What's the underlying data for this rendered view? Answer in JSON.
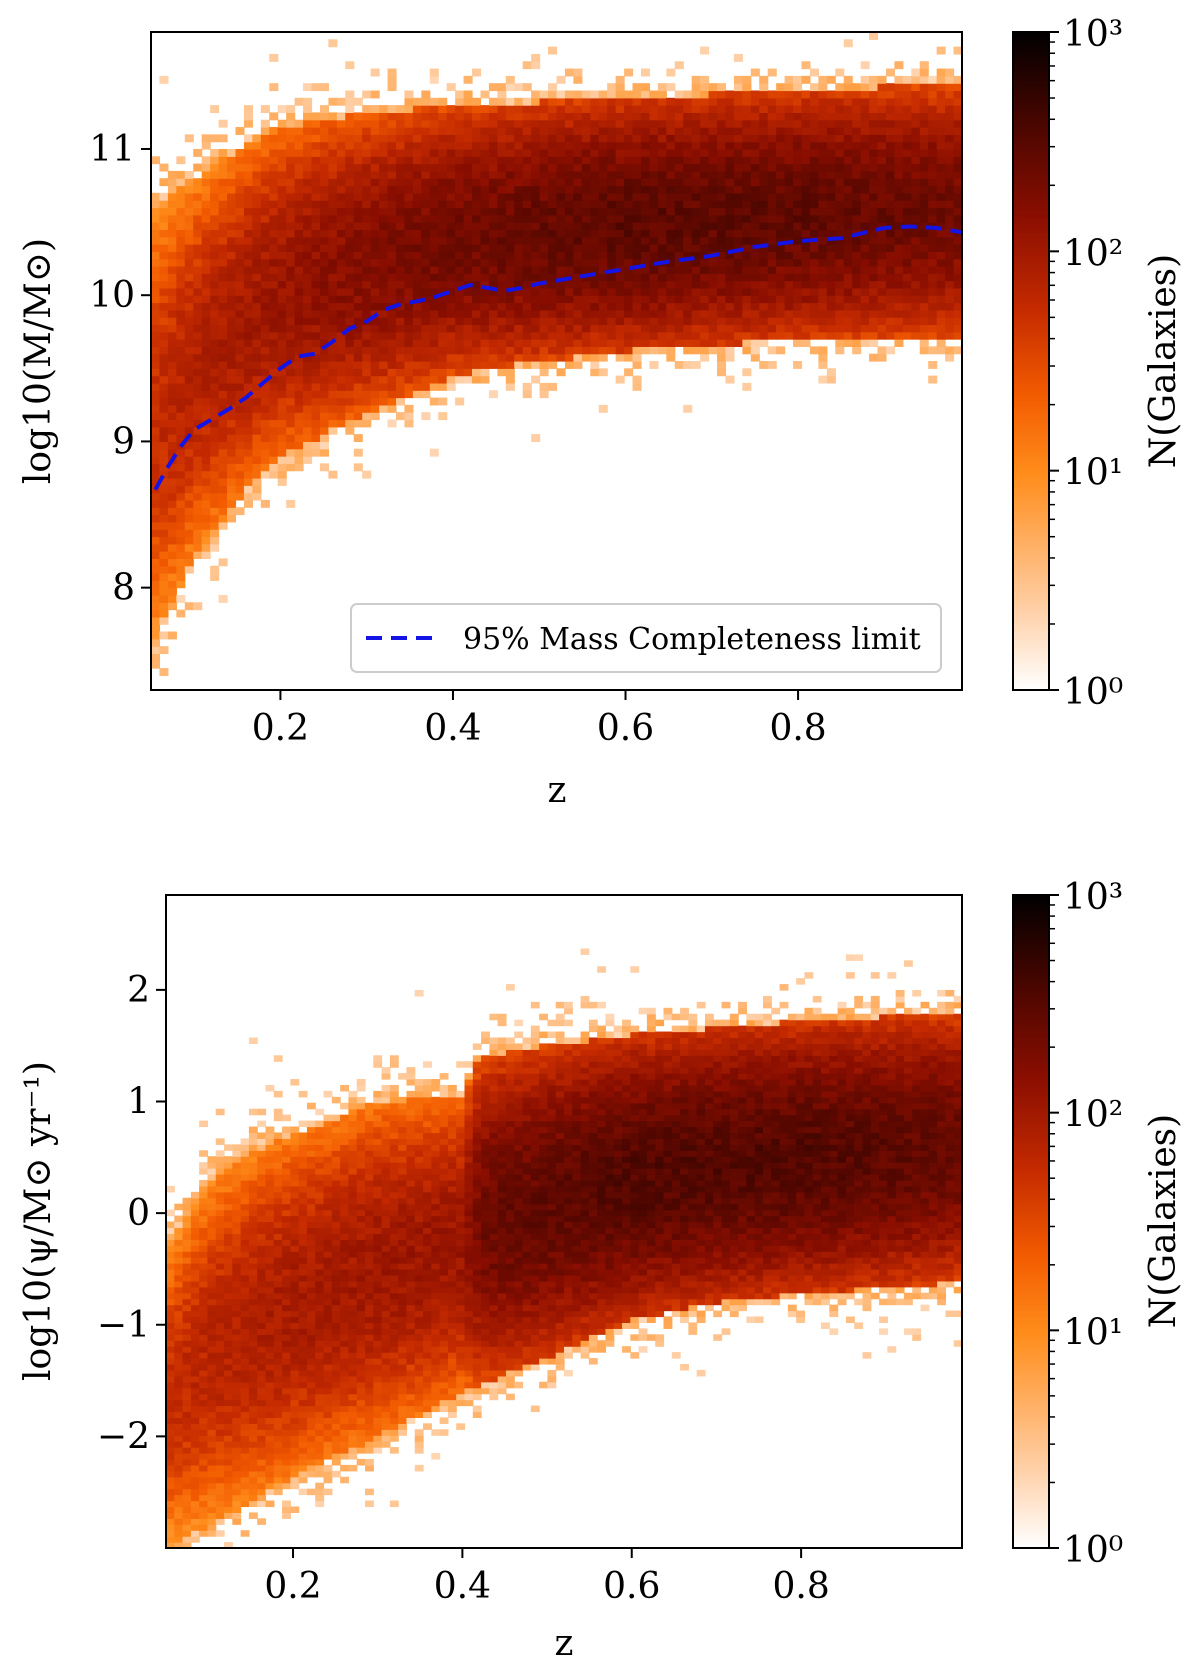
{
  "colors": {
    "cmap": [
      "#ffffff",
      "#ffd0a8",
      "#ff8c1a",
      "#f25a00",
      "#c42a00",
      "#8a0e00",
      "#4a0600",
      "#000000"
    ],
    "completeness_line": "#1414e6",
    "axes": "#000000"
  },
  "chart_data": [
    {
      "type": "heatmap",
      "xlabel": "z",
      "ylabel": "log10(M/M⊙)",
      "xlim": [
        0.05,
        0.99
      ],
      "ylim": [
        7.3,
        11.8
      ],
      "xticks": [
        0.2,
        0.4,
        0.6,
        0.8
      ],
      "xtick_labels": [
        "0.2",
        "0.4",
        "0.6",
        "0.8"
      ],
      "yticks": [
        8,
        9,
        10,
        11
      ],
      "ytick_labels": [
        "8",
        "9",
        "10",
        "11"
      ],
      "bins": {
        "nx": 96,
        "ny": 90
      },
      "density_model": {
        "lower_edge": [
          [
            0.05,
            7.6
          ],
          [
            0.1,
            8.2
          ],
          [
            0.15,
            8.6
          ],
          [
            0.2,
            8.9
          ],
          [
            0.3,
            9.2
          ],
          [
            0.4,
            9.45
          ],
          [
            0.5,
            9.55
          ],
          [
            0.6,
            9.62
          ],
          [
            0.7,
            9.66
          ],
          [
            0.8,
            9.7
          ],
          [
            0.99,
            9.72
          ]
        ],
        "upper_edge": [
          [
            0.05,
            10.6
          ],
          [
            0.1,
            10.8
          ],
          [
            0.15,
            11.0
          ],
          [
            0.2,
            11.15
          ],
          [
            0.3,
            11.25
          ],
          [
            0.4,
            11.3
          ],
          [
            0.6,
            11.35
          ],
          [
            0.8,
            11.4
          ],
          [
            0.99,
            11.45
          ]
        ],
        "peak_count": [
          [
            0.05,
            40
          ],
          [
            0.2,
            90
          ],
          [
            0.4,
            180
          ],
          [
            0.6,
            260
          ],
          [
            0.8,
            240
          ],
          [
            0.99,
            180
          ]
        ]
      },
      "series": [
        {
          "name": "95% Mass Completeness limit",
          "style": "dashed",
          "x": [
            0.055,
            0.07,
            0.085,
            0.1,
            0.12,
            0.14,
            0.16,
            0.18,
            0.2,
            0.22,
            0.24,
            0.26,
            0.28,
            0.3,
            0.32,
            0.34,
            0.36,
            0.38,
            0.4,
            0.42,
            0.44,
            0.46,
            0.48,
            0.5,
            0.55,
            0.6,
            0.65,
            0.7,
            0.75,
            0.8,
            0.85,
            0.9,
            0.93,
            0.96,
            0.99
          ],
          "y": [
            8.67,
            8.83,
            8.97,
            9.08,
            9.15,
            9.22,
            9.3,
            9.4,
            9.5,
            9.58,
            9.6,
            9.68,
            9.77,
            9.82,
            9.9,
            9.94,
            9.96,
            9.99,
            10.03,
            10.07,
            10.05,
            10.03,
            10.05,
            10.08,
            10.13,
            10.18,
            10.23,
            10.27,
            10.33,
            10.37,
            10.39,
            10.46,
            10.47,
            10.46,
            10.43
          ]
        }
      ],
      "legend": {
        "position": "lower-right",
        "label": "95% Mass Completeness limit"
      },
      "colorbar": {
        "label": "N(Galaxies)",
        "scale": "log",
        "range": [
          1,
          1000
        ],
        "tick_labels": [
          "10⁰",
          "10¹",
          "10²",
          "10³"
        ]
      }
    },
    {
      "type": "heatmap",
      "xlabel": "z",
      "ylabel": "log10(ψ/M⊙ yr⁻¹)",
      "xlim": [
        0.05,
        0.99
      ],
      "ylim": [
        -3.0,
        2.85
      ],
      "xticks": [
        0.2,
        0.4,
        0.6,
        0.8
      ],
      "xtick_labels": [
        "0.2",
        "0.4",
        "0.6",
        "0.8"
      ],
      "yticks": [
        -2,
        -1,
        0,
        1,
        2
      ],
      "ytick_labels": [
        "−2",
        "−1",
        "0",
        "1",
        "2"
      ],
      "bins": {
        "nx": 96,
        "ny": 110
      },
      "density_model": {
        "lower_edge": [
          [
            0.05,
            -3.0
          ],
          [
            0.1,
            -2.8
          ],
          [
            0.15,
            -2.6
          ],
          [
            0.2,
            -2.35
          ],
          [
            0.3,
            -2.0
          ],
          [
            0.4,
            -1.6
          ],
          [
            0.5,
            -1.3
          ],
          [
            0.6,
            -0.95
          ],
          [
            0.7,
            -0.8
          ],
          [
            0.8,
            -0.72
          ],
          [
            0.99,
            -0.62
          ]
        ],
        "upper_edge": [
          [
            0.05,
            -0.3
          ],
          [
            0.1,
            0.3
          ],
          [
            0.15,
            0.55
          ],
          [
            0.2,
            0.7
          ],
          [
            0.3,
            1.0
          ],
          [
            0.4,
            1.05
          ],
          [
            0.42,
            1.4
          ],
          [
            0.5,
            1.5
          ],
          [
            0.6,
            1.6
          ],
          [
            0.8,
            1.72
          ],
          [
            0.99,
            1.8
          ]
        ],
        "peak_count": [
          [
            0.05,
            40
          ],
          [
            0.2,
            70
          ],
          [
            0.4,
            90
          ],
          [
            0.43,
            200
          ],
          [
            0.6,
            300
          ],
          [
            0.8,
            300
          ],
          [
            0.99,
            220
          ]
        ]
      },
      "colorbar": {
        "label": "N(Galaxies)",
        "scale": "log",
        "range": [
          1,
          1000
        ],
        "tick_labels": [
          "10⁰",
          "10¹",
          "10²",
          "10³"
        ]
      }
    }
  ]
}
